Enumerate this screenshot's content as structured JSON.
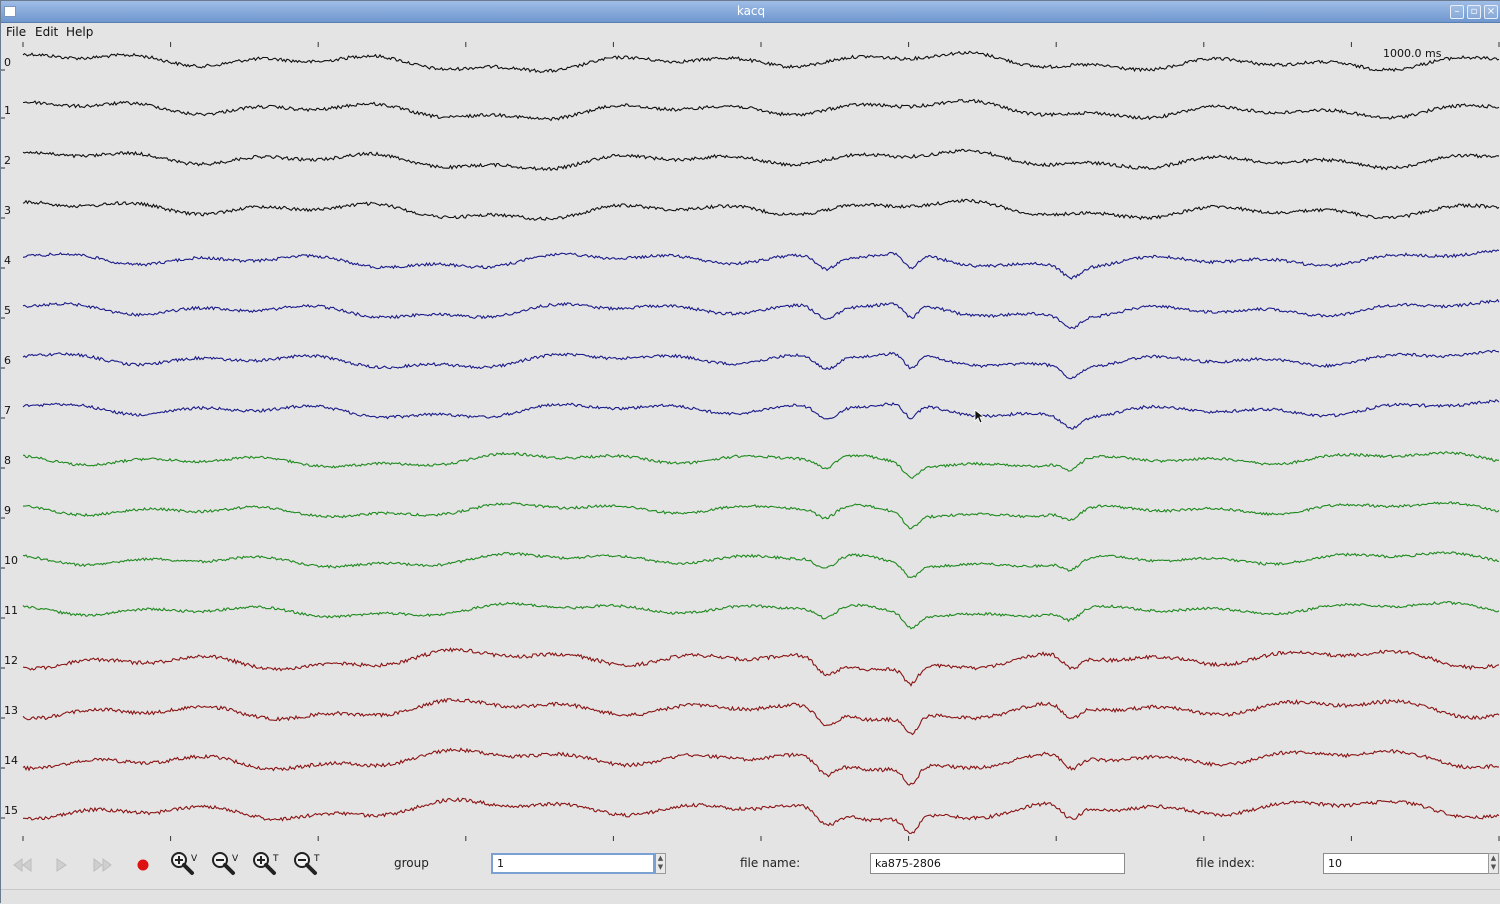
{
  "window": {
    "title": "kacq"
  },
  "menu": [
    {
      "label": "File"
    },
    {
      "label": "Edit"
    },
    {
      "label": "Help"
    }
  ],
  "plot": {
    "time_scale_label": "1000.0 ms",
    "channels": [
      {
        "label": "0",
        "group": "black"
      },
      {
        "label": "1",
        "group": "black"
      },
      {
        "label": "2",
        "group": "black"
      },
      {
        "label": "3",
        "group": "black"
      },
      {
        "label": "4",
        "group": "blue"
      },
      {
        "label": "5",
        "group": "blue"
      },
      {
        "label": "6",
        "group": "blue"
      },
      {
        "label": "7",
        "group": "blue"
      },
      {
        "label": "8",
        "group": "green"
      },
      {
        "label": "9",
        "group": "green"
      },
      {
        "label": "10",
        "group": "green"
      },
      {
        "label": "11",
        "group": "green"
      },
      {
        "label": "12",
        "group": "red"
      },
      {
        "label": "13",
        "group": "red"
      },
      {
        "label": "14",
        "group": "red"
      },
      {
        "label": "15",
        "group": "red"
      }
    ],
    "group_colors": {
      "black": "#111111",
      "blue": "#1c1c8a",
      "green": "#1f8a1f",
      "red": "#8a1414"
    }
  },
  "toolbar": {
    "buttons": [
      {
        "icon": "rewind-icon",
        "enabled": false
      },
      {
        "icon": "play-icon",
        "enabled": false
      },
      {
        "icon": "fast-forward-icon",
        "enabled": false
      },
      {
        "icon": "record-icon",
        "enabled": true
      },
      {
        "icon": "zoom-in-vertical-icon",
        "enabled": true
      },
      {
        "icon": "zoom-out-vertical-icon",
        "enabled": true
      },
      {
        "icon": "zoom-in-time-icon",
        "enabled": true
      },
      {
        "icon": "zoom-out-time-icon",
        "enabled": true
      }
    ],
    "zoom_v_letter": "V",
    "zoom_t_letter": "T",
    "group_label": "group",
    "group_value": "1",
    "file_name_label": "file name:",
    "file_name_value": "ka875-2806",
    "file_index_label": "file index:",
    "file_index_value": "10"
  },
  "colors": {
    "record": "#dd1111",
    "accent": "#7aa0d4"
  }
}
